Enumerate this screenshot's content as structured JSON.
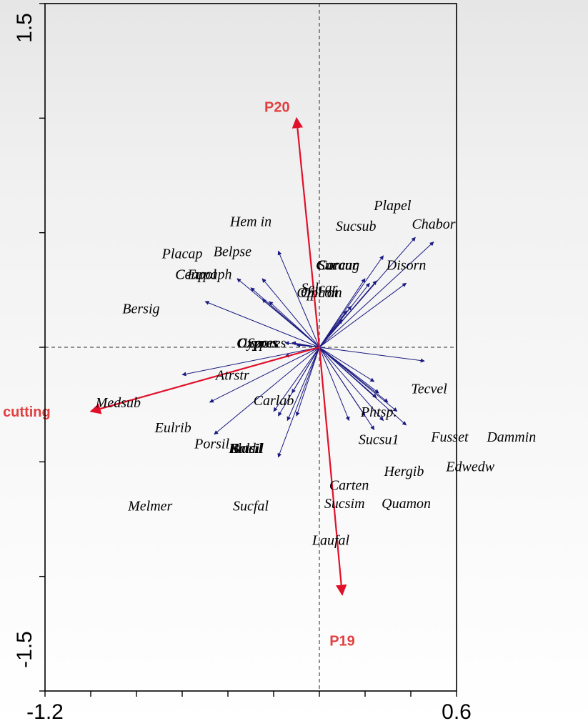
{
  "chart_data": {
    "type": "scatter",
    "title": "",
    "xlabel": "",
    "ylabel": "",
    "xlim": [
      -1.2,
      0.6
    ],
    "ylim": [
      -1.5,
      1.5
    ],
    "x_tick_labels": [
      "-1.2",
      "0.6"
    ],
    "y_tick_labels": [
      "-1.5",
      "1.5"
    ],
    "reference_lines": {
      "x": 0,
      "y": 0
    },
    "colors": {
      "species_arrow": "#1a1a80",
      "environment_arrow": "#e0102a",
      "environment_label": "#e04040",
      "axis": "#000000",
      "reference_line": "#555555"
    },
    "environment_vectors": [
      {
        "label": "P20",
        "x": -0.1,
        "y": 1.0
      },
      {
        "label": "cutting",
        "x": -1.0,
        "y": -0.28
      },
      {
        "label": "P19",
        "x": 0.1,
        "y": -1.08
      }
    ],
    "species_vectors": [
      {
        "label": "Plapel",
        "x": 0.42,
        "y": 0.48
      },
      {
        "label": "Chabor",
        "x": 0.5,
        "y": 0.46
      },
      {
        "label": "Sucsub",
        "x": 0.28,
        "y": 0.4
      },
      {
        "label": "Carcar",
        "x": 0.2,
        "y": 0.3
      },
      {
        "label": "Succur",
        "x": 0.22,
        "y": 0.28
      },
      {
        "label": "Caraug",
        "x": 0.25,
        "y": 0.29
      },
      {
        "label": "Disorn",
        "x": 0.38,
        "y": 0.28
      },
      {
        "label": "Selcar",
        "x": 0.12,
        "y": 0.16
      },
      {
        "label": "Oplcom",
        "x": 0.14,
        "y": 0.18
      },
      {
        "label": "Oplrot",
        "x": 0.1,
        "y": 0.12
      },
      {
        "label": "Hem in",
        "x": -0.18,
        "y": 0.42
      },
      {
        "label": "Belpse",
        "x": -0.25,
        "y": 0.3
      },
      {
        "label": "Placap",
        "x": -0.36,
        "y": 0.3
      },
      {
        "label": "Ceupol",
        "x": -0.3,
        "y": 0.26
      },
      {
        "label": "Cenpol",
        "x": -0.25,
        "y": 0.21
      },
      {
        "label": "Eupaph",
        "x": -0.22,
        "y": 0.2
      },
      {
        "label": "Bersig",
        "x": -0.5,
        "y": 0.2
      },
      {
        "label": "Oxypes",
        "x": -0.12,
        "y": 0.02
      },
      {
        "label": "Cypres",
        "x": -0.15,
        "y": 0.02
      },
      {
        "label": "Spores",
        "x": -0.1,
        "y": 0.01
      },
      {
        "label": "Atrstr",
        "x": -0.15,
        "y": -0.04
      },
      {
        "label": "Medsub",
        "x": -0.6,
        "y": -0.12
      },
      {
        "label": "Eulrib",
        "x": -0.48,
        "y": -0.24
      },
      {
        "label": "Carlab",
        "x": -0.12,
        "y": -0.2
      },
      {
        "label": "Porsil",
        "x": -0.18,
        "y": -0.3
      },
      {
        "label": "Bladil",
        "x": -0.2,
        "y": -0.28
      },
      {
        "label": "Brtril",
        "x": -0.14,
        "y": -0.32
      },
      {
        "label": "Kalsil",
        "x": -0.1,
        "y": -0.3
      },
      {
        "label": "Melmer",
        "x": -0.46,
        "y": -0.38
      },
      {
        "label": "Sucfal",
        "x": -0.18,
        "y": -0.48
      },
      {
        "label": "Tecvel",
        "x": 0.46,
        "y": -0.06
      },
      {
        "label": "Phtsp.",
        "x": 0.24,
        "y": -0.15
      },
      {
        "label": "Sucsu1",
        "x": 0.25,
        "y": -0.22
      },
      {
        "label": "Fusset",
        "x": 0.26,
        "y": -0.2
      },
      {
        "label": "Dammin",
        "x": 0.3,
        "y": -0.24
      },
      {
        "label": "Hergib",
        "x": 0.38,
        "y": -0.34
      },
      {
        "label": "Edwedw",
        "x": 0.34,
        "y": -0.28
      },
      {
        "label": "Carten",
        "x": 0.24,
        "y": -0.36
      },
      {
        "label": "Sucsim",
        "x": 0.2,
        "y": -0.3
      },
      {
        "label": "Quamon",
        "x": 0.28,
        "y": -0.32
      },
      {
        "label": "Laufal",
        "x": 0.13,
        "y": -0.32
      }
    ],
    "species_label_positions": [
      {
        "label": "Plapel",
        "x": 0.32,
        "y": 0.62
      },
      {
        "label": "Chabor",
        "x": 0.5,
        "y": 0.54
      },
      {
        "label": "Sucsub",
        "x": 0.16,
        "y": 0.53
      },
      {
        "label": "Carcar",
        "x": 0.08,
        "y": 0.36
      },
      {
        "label": "Succur",
        "x": 0.08,
        "y": 0.36
      },
      {
        "label": "Caraug",
        "x": 0.08,
        "y": 0.36
      },
      {
        "label": "Disorn",
        "x": 0.38,
        "y": 0.36
      },
      {
        "label": "Selcar",
        "x": 0.0,
        "y": 0.26
      },
      {
        "label": "Oplcom",
        "x": 0.0,
        "y": 0.24
      },
      {
        "label": "Oplrot",
        "x": 0.0,
        "y": 0.24
      },
      {
        "label": "Hem in",
        "x": -0.3,
        "y": 0.55
      },
      {
        "label": "Belpse",
        "x": -0.38,
        "y": 0.42
      },
      {
        "label": "Placap",
        "x": -0.6,
        "y": 0.41
      },
      {
        "label": "Ceupol",
        "x": -0.54,
        "y": 0.32
      },
      {
        "label": "Cenpol",
        "x": -0.54,
        "y": 0.32
      },
      {
        "label": "Eupaph",
        "x": -0.48,
        "y": 0.32
      },
      {
        "label": "Bersig",
        "x": -0.78,
        "y": 0.17
      },
      {
        "label": "Oxypes",
        "x": -0.27,
        "y": 0.02
      },
      {
        "label": "Cypres",
        "x": -0.27,
        "y": 0.02
      },
      {
        "label": "Spores",
        "x": -0.23,
        "y": 0.02
      },
      {
        "label": "Atrstr",
        "x": -0.38,
        "y": -0.12
      },
      {
        "label": "Medsub",
        "x": -0.88,
        "y": -0.24
      },
      {
        "label": "Eulrib",
        "x": -0.64,
        "y": -0.35
      },
      {
        "label": "Carlab",
        "x": -0.2,
        "y": -0.23
      },
      {
        "label": "Porsil",
        "x": -0.47,
        "y": -0.42
      },
      {
        "label": "Bladil",
        "x": -0.32,
        "y": -0.44
      },
      {
        "label": "Brtril",
        "x": -0.32,
        "y": -0.44
      },
      {
        "label": "Kalsil",
        "x": -0.32,
        "y": -0.44
      },
      {
        "label": "Melmer",
        "x": -0.74,
        "y": -0.69
      },
      {
        "label": "Sucfal",
        "x": -0.3,
        "y": -0.69
      },
      {
        "label": "Tecvel",
        "x": 0.48,
        "y": -0.18
      },
      {
        "label": "Phtsp.",
        "x": 0.26,
        "y": -0.28
      },
      {
        "label": "Sucsu1",
        "x": 0.26,
        "y": -0.4
      },
      {
        "label": "Fusset",
        "x": 0.57,
        "y": -0.39
      },
      {
        "label": "Dammin",
        "x": 0.84,
        "y": -0.39
      },
      {
        "label": "Hergib",
        "x": 0.37,
        "y": -0.54
      },
      {
        "label": "Edwedw",
        "x": 0.66,
        "y": -0.52
      },
      {
        "label": "Carten",
        "x": 0.13,
        "y": -0.6
      },
      {
        "label": "Sucsim",
        "x": 0.11,
        "y": -0.68
      },
      {
        "label": "Quamon",
        "x": 0.38,
        "y": -0.68
      },
      {
        "label": "Laufal",
        "x": 0.05,
        "y": -0.84
      }
    ],
    "environment_label_positions": [
      {
        "label": "P20",
        "x": -0.185,
        "y": 1.05
      },
      {
        "label": "cutting",
        "x": -1.28,
        "y": -0.28
      },
      {
        "label": "P19",
        "x": 0.1,
        "y": -1.28
      }
    ]
  }
}
